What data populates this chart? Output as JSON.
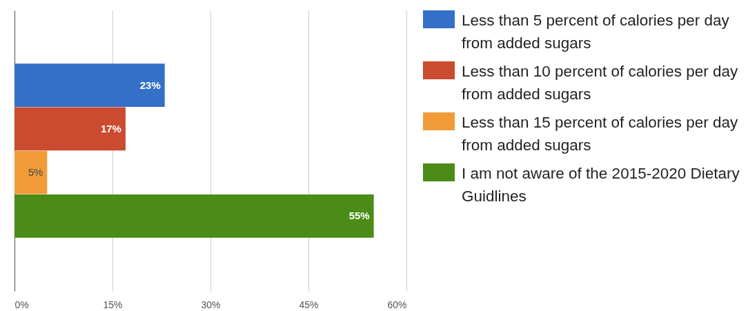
{
  "chart_data": {
    "type": "bar",
    "orientation": "horizontal",
    "categories": [
      null
    ],
    "series": [
      {
        "name": "Less than 5 percent of calories per day from added sugars",
        "color": "#3570c8",
        "values": [
          23
        ],
        "value_labels": [
          "23%"
        ]
      },
      {
        "name": "Less than 10 percent of calories per day from added sugars",
        "color": "#cb4b30",
        "values": [
          17
        ],
        "value_labels": [
          "17%"
        ]
      },
      {
        "name": "Less than 15 percent of calories per day from added sugars",
        "color": "#f19c38",
        "values": [
          5
        ],
        "value_labels": [
          "5%"
        ]
      },
      {
        "name": "I am not aware of the 2015-2020 Dietary Guidlines",
        "color": "#4a8c17",
        "values": [
          55
        ],
        "value_labels": [
          "55%"
        ]
      }
    ],
    "xlim": [
      0,
      60
    ],
    "xticks": [
      {
        "value": 0,
        "label": "0%"
      },
      {
        "value": 15,
        "label": "15%"
      },
      {
        "value": 30,
        "label": "30%"
      },
      {
        "value": 45,
        "label": "45%"
      },
      {
        "value": 60,
        "label": "60%"
      }
    ],
    "grid": "x",
    "legend": "right"
  }
}
